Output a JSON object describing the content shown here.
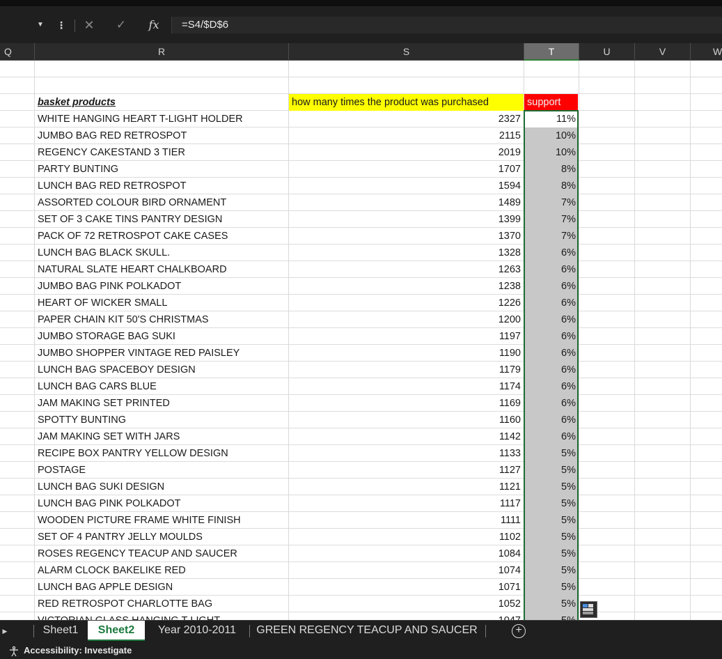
{
  "formula_bar": {
    "cancel_icon": "close-icon",
    "enter_icon": "check-icon",
    "fx_label": "fx",
    "formula": "=S4/$D$6"
  },
  "columns": [
    "Q",
    "R",
    "S",
    "T",
    "U",
    "V",
    "W"
  ],
  "active_column": "T",
  "headers": {
    "products": "basket products",
    "count": "how many times the product was purchased",
    "support": "support"
  },
  "rows": [
    {
      "product": "WHITE HANGING HEART T-LIGHT HOLDER",
      "count": "2327",
      "support": "11%"
    },
    {
      "product": "JUMBO BAG RED RETROSPOT",
      "count": "2115",
      "support": "10%"
    },
    {
      "product": "REGENCY CAKESTAND 3 TIER",
      "count": "2019",
      "support": "10%"
    },
    {
      "product": "PARTY BUNTING",
      "count": "1707",
      "support": "8%"
    },
    {
      "product": "LUNCH BAG RED RETROSPOT",
      "count": "1594",
      "support": "8%"
    },
    {
      "product": "ASSORTED COLOUR BIRD ORNAMENT",
      "count": "1489",
      "support": "7%"
    },
    {
      "product": "SET OF 3 CAKE TINS PANTRY DESIGN",
      "count": "1399",
      "support": "7%"
    },
    {
      "product": "PACK OF 72 RETROSPOT CAKE CASES",
      "count": "1370",
      "support": "7%"
    },
    {
      "product": "LUNCH BAG  BLACK SKULL.",
      "count": "1328",
      "support": "6%"
    },
    {
      "product": "NATURAL SLATE HEART CHALKBOARD",
      "count": "1263",
      "support": "6%"
    },
    {
      "product": "JUMBO BAG PINK POLKADOT",
      "count": "1238",
      "support": "6%"
    },
    {
      "product": "HEART OF WICKER SMALL",
      "count": "1226",
      "support": "6%"
    },
    {
      "product": "PAPER CHAIN KIT 50'S CHRISTMAS",
      "count": "1200",
      "support": "6%"
    },
    {
      "product": "JUMBO STORAGE BAG SUKI",
      "count": "1197",
      "support": "6%"
    },
    {
      "product": "JUMBO SHOPPER VINTAGE RED PAISLEY",
      "count": "1190",
      "support": "6%"
    },
    {
      "product": "LUNCH BAG SPACEBOY DESIGN",
      "count": "1179",
      "support": "6%"
    },
    {
      "product": "LUNCH BAG CARS BLUE",
      "count": "1174",
      "support": "6%"
    },
    {
      "product": "JAM MAKING SET PRINTED",
      "count": "1169",
      "support": "6%"
    },
    {
      "product": "SPOTTY BUNTING",
      "count": "1160",
      "support": "6%"
    },
    {
      "product": "JAM MAKING SET WITH JARS",
      "count": "1142",
      "support": "6%"
    },
    {
      "product": "RECIPE BOX PANTRY YELLOW DESIGN",
      "count": "1133",
      "support": "5%"
    },
    {
      "product": "POSTAGE",
      "count": "1127",
      "support": "5%"
    },
    {
      "product": "LUNCH BAG SUKI DESIGN",
      "count": "1121",
      "support": "5%"
    },
    {
      "product": "LUNCH BAG PINK POLKADOT",
      "count": "1117",
      "support": "5%"
    },
    {
      "product": "WOODEN PICTURE FRAME WHITE FINISH",
      "count": "1111",
      "support": "5%"
    },
    {
      "product": "SET OF 4 PANTRY JELLY MOULDS",
      "count": "1102",
      "support": "5%"
    },
    {
      "product": "ROSES REGENCY TEACUP AND SAUCER",
      "count": "1084",
      "support": "5%"
    },
    {
      "product": "ALARM CLOCK BAKELIKE RED",
      "count": "1074",
      "support": "5%"
    },
    {
      "product": "LUNCH BAG APPLE DESIGN",
      "count": "1071",
      "support": "5%"
    },
    {
      "product": "RED RETROSPOT CHARLOTTE BAG",
      "count": "1052",
      "support": "5%"
    }
  ],
  "sheet_tabs": [
    {
      "label": "Sheet1",
      "active": false
    },
    {
      "label": "Sheet2",
      "active": true
    },
    {
      "label": "Year 2010-2011",
      "active": false
    },
    {
      "label": "GREEN REGENCY TEACUP AND SAUCER",
      "active": false
    }
  ],
  "add_sheet_icon": "plus-circle-icon",
  "status": {
    "accessibility": "Accessibility: Investigate"
  },
  "colors": {
    "header_yellow": "#ffff00",
    "header_red": "#ff0000",
    "selection_fill": "#c8c8c8",
    "accent_green": "#1b7a3e"
  }
}
